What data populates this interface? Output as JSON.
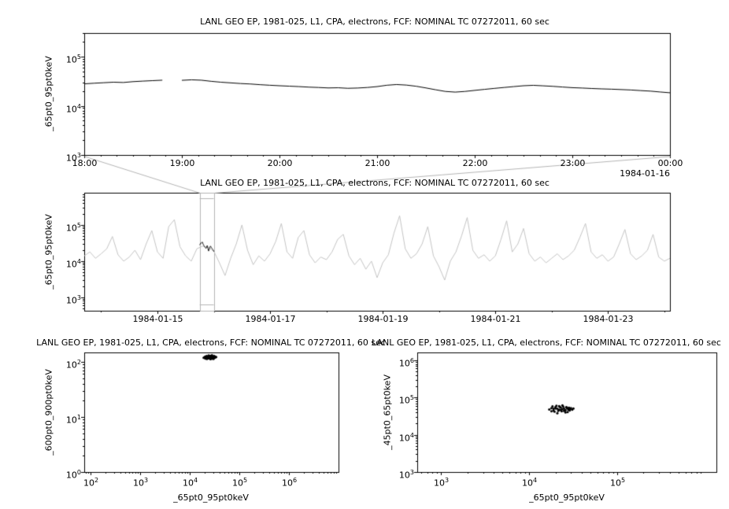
{
  "figure": {
    "background": "#ffffff",
    "frame_color": "#000000",
    "overview_link_color": "#b4b4b4"
  },
  "chart_data": [
    {
      "id": "detail-timeseries",
      "type": "line",
      "title": "LANL GEO EP, 1981-025, L1, CPA, electrons, FCF: NOMINAL TC 07272011, 60 sec",
      "ylabel": "_65pt0_95pt0keV",
      "xlabel": "",
      "line_color": "#000000",
      "x_axis": {
        "type": "linear",
        "unit": "time of day (hours, 1984-01-15 into 1984-01-16)",
        "range": [
          18,
          24
        ],
        "minor_step": 0.16667,
        "date_label": "1984-01-16",
        "ticks": [
          {
            "pos": 18,
            "label": "18:00"
          },
          {
            "pos": 19,
            "label": "19:00"
          },
          {
            "pos": 20,
            "label": "20:00"
          },
          {
            "pos": 21,
            "label": "21:00"
          },
          {
            "pos": 22,
            "label": "22:00"
          },
          {
            "pos": 23,
            "label": "23:00"
          },
          {
            "pos": 24,
            "label": "00:00"
          }
        ]
      },
      "y_axis": {
        "type": "log",
        "range": [
          3,
          5.48
        ],
        "tick_exponents": [
          3,
          4,
          5
        ]
      },
      "x_start": 18.0,
      "x_step": 0.1,
      "y": [
        28000,
        28800,
        29500,
        30200,
        29800,
        31000,
        31800,
        32500,
        33200,
        null,
        33000,
        33800,
        33200,
        31500,
        30200,
        29300,
        28400,
        27800,
        26900,
        26200,
        25600,
        25100,
        24600,
        24000,
        23600,
        23100,
        23300,
        22700,
        23000,
        23600,
        24600,
        26200,
        27100,
        26400,
        25000,
        23100,
        21200,
        19600,
        19000,
        19600,
        20600,
        21600,
        22600,
        23600,
        24600,
        25600,
        26100,
        25500,
        24900,
        24100,
        23400,
        23000,
        22500,
        22100,
        21800,
        21400,
        21000,
        20400,
        19900,
        19100,
        18400
      ]
    },
    {
      "id": "context-overview",
      "type": "line",
      "title": "LANL GEO EP, 1981-025, L1, CPA, electrons, FCF: NOMINAL TC 07272011, 60 sec",
      "ylabel": "_65pt0_95pt0keV",
      "xlabel": "",
      "line_color": "#c4c4c4",
      "x_axis": {
        "type": "linear",
        "unit": "day of 1984-01",
        "range": [
          13.7,
          24.1
        ],
        "minor_step": 1,
        "ticks": [
          {
            "pos": 15,
            "label": "1984-01-15"
          },
          {
            "pos": 17,
            "label": "1984-01-17"
          },
          {
            "pos": 19,
            "label": "1984-01-19"
          },
          {
            "pos": 21,
            "label": "1984-01-21"
          },
          {
            "pos": 23,
            "label": "1984-01-23"
          }
        ]
      },
      "y_axis": {
        "type": "log",
        "range": [
          2.63,
          5.89
        ],
        "tick_exponents": [
          3,
          4,
          5
        ]
      },
      "highlight": {
        "x_range": [
          15.75,
          16.0
        ],
        "color": "#000000",
        "box_color": "#b4b4b4"
      },
      "x_start": 13.7,
      "x_step": 0.1,
      "y": [
        14000,
        18000,
        12000,
        16000,
        22000,
        48000,
        15000,
        10000,
        13000,
        20000,
        11000,
        30000,
        70000,
        18000,
        12000,
        90000,
        140000,
        25000,
        14000,
        10000,
        22000,
        26000,
        24000,
        19000,
        9000,
        4000,
        12000,
        30000,
        100000,
        20000,
        8000,
        14000,
        10000,
        16000,
        35000,
        110000,
        18000,
        12000,
        45000,
        70000,
        15000,
        9000,
        13000,
        11000,
        18000,
        40000,
        55000,
        14000,
        8000,
        12000,
        6000,
        10000,
        3500,
        9000,
        15000,
        60000,
        180000,
        22000,
        12000,
        16000,
        30000,
        90000,
        14000,
        7000,
        3000,
        10000,
        18000,
        50000,
        160000,
        20000,
        12000,
        15000,
        10000,
        14000,
        40000,
        130000,
        18000,
        30000,
        80000,
        16000,
        10000,
        13000,
        9000,
        12000,
        16000,
        11000,
        14000,
        20000,
        45000,
        110000,
        18000,
        12000,
        15000,
        10000,
        13000,
        30000,
        75000,
        16000,
        11000,
        14000,
        20000,
        55000,
        13000,
        10000,
        12000
      ]
    },
    {
      "id": "scatter-600-900-vs-65-95",
      "type": "scatter",
      "title": "LANL GEO EP, 1981-025, L1, CPA, electrons, FCF: NOMINAL TC 07272011, 60 sec",
      "ylabel": "_600pt0_900pt0keV",
      "xlabel": "_65pt0_95pt0keV",
      "marker_color": "#000000",
      "marker_size": 1.5,
      "x_axis": {
        "type": "log",
        "range": [
          1.87,
          7.0
        ],
        "tick_exponents": [
          2,
          3,
          4,
          5,
          6
        ]
      },
      "y_axis": {
        "type": "log",
        "range": [
          0,
          2.17
        ],
        "tick_exponents": [
          0,
          1,
          2
        ]
      },
      "x": [
        19000,
        20000,
        20500,
        21000,
        21500,
        22000,
        22500,
        23000,
        23500,
        24000,
        24500,
        25000,
        25500,
        26000,
        26500,
        27000,
        27500,
        28000,
        28500,
        29000,
        29500,
        30000,
        30500,
        31000,
        31500,
        32000,
        33000,
        34000,
        26000,
        24000,
        22000,
        28000,
        30000,
        21000,
        25000,
        23000,
        27000,
        29000,
        31000,
        20000
      ],
      "y": [
        118,
        122,
        115,
        125,
        120,
        128,
        117,
        123,
        119,
        126,
        121,
        116,
        124,
        129,
        118,
        122,
        114,
        120,
        127,
        119,
        123,
        117,
        125,
        121,
        118,
        124,
        120,
        122,
        112,
        131,
        113,
        132,
        113,
        119,
        127,
        115,
        125,
        116,
        128,
        121
      ]
    },
    {
      "id": "scatter-45-65-vs-65-95",
      "type": "scatter",
      "title": "LANL GEO EP, 1981-025, L1, CPA, electrons, FCF: NOMINAL TC 07272011, 60 sec",
      "ylabel": "_45pt0_65pt0keV",
      "xlabel": "_65pt0_95pt0keV",
      "marker_color": "#000000",
      "marker_size": 1.5,
      "x_axis": {
        "type": "log",
        "range": [
          2.73,
          6.13
        ],
        "tick_exponents": [
          3,
          4,
          5
        ]
      },
      "y_axis": {
        "type": "log",
        "range": [
          3,
          6.21
        ],
        "tick_exponents": [
          3,
          4,
          5,
          6
        ]
      },
      "x": [
        17000,
        18000,
        19000,
        20000,
        21000,
        22000,
        23000,
        24000,
        25000,
        26000,
        27000,
        28000,
        29000,
        30000,
        31000,
        32000,
        18500,
        19500,
        20500,
        21500,
        22500,
        23500,
        24500,
        25500,
        26500,
        27500,
        28500,
        29500,
        21000,
        24000,
        26000,
        19000,
        23000,
        27000,
        22000,
        25000,
        28000,
        20000,
        29000,
        18000
      ],
      "y": [
        48000,
        52000,
        45000,
        55000,
        50000,
        47000,
        53000,
        49000,
        51000,
        46000,
        54000,
        50000,
        48000,
        52000,
        47000,
        51000,
        58000,
        42000,
        60000,
        44000,
        56000,
        43000,
        57000,
        45000,
        55000,
        41000,
        53000,
        49000,
        38000,
        62000,
        40000,
        50000,
        46000,
        52000,
        59000,
        44000,
        47000,
        51000,
        45000,
        43000
      ]
    }
  ]
}
